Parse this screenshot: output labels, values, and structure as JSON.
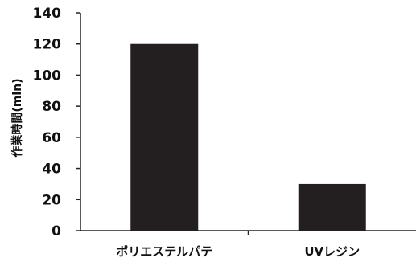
{
  "chart_data": {
    "type": "bar",
    "title": "",
    "xlabel": "",
    "ylabel": "作業時間(min)",
    "categories": [
      "ポリエステルパテ",
      "UVレジン"
    ],
    "values": [
      120,
      30
    ],
    "ylim": [
      0,
      140
    ],
    "yticks": [
      0,
      20,
      40,
      60,
      80,
      100,
      120,
      140
    ],
    "grid": false,
    "legend": "none",
    "bar_color": "#231f20",
    "axis_color": "#222222"
  }
}
